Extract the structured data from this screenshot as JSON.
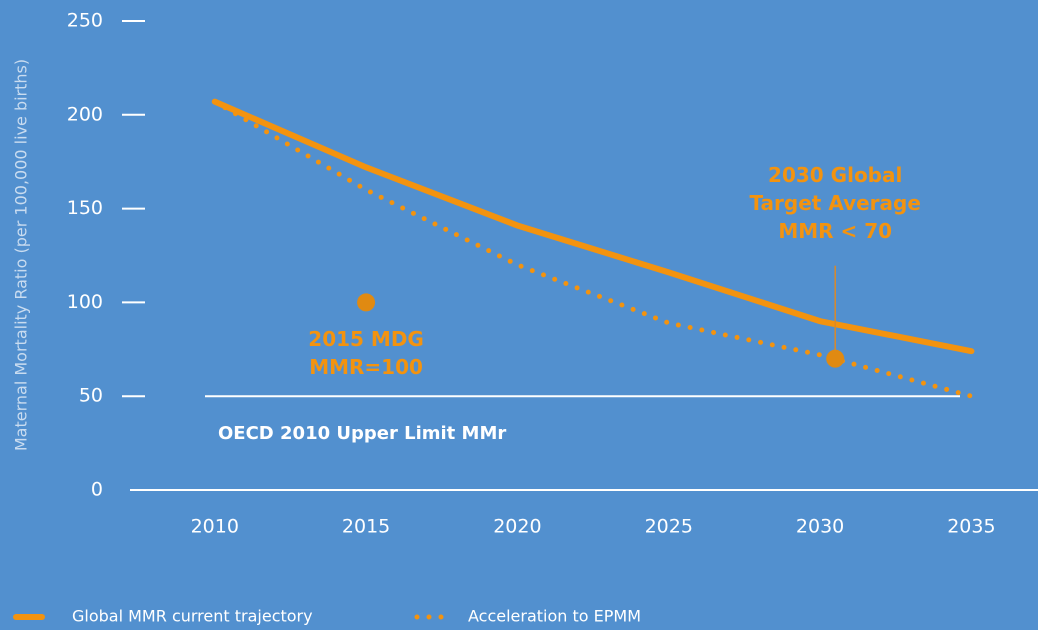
{
  "chart_data": {
    "type": "line",
    "y_label": "Maternal Mortality Ratio (per 100,000 live births)",
    "x": [
      2010,
      2015,
      2020,
      2025,
      2030,
      2035
    ],
    "series": [
      {
        "name": "Global MMR current trajectory",
        "color": "#f3930f",
        "style": "solid",
        "values": [
          207,
          172,
          141,
          116,
          90,
          74
        ]
      },
      {
        "name": "Acceleration to EPMM",
        "color": "#f3930f",
        "style": "dotted",
        "values": [
          207,
          160,
          120,
          89,
          72,
          50
        ]
      }
    ],
    "reference_line": {
      "value": 50,
      "label": "OECD 2010 Upper Limit MMr",
      "color": "#ffffff"
    },
    "points": [
      {
        "x": 2015,
        "y": 100,
        "label": [
          "2015 MDG",
          "MMR=100"
        ]
      },
      {
        "x": 2030.5,
        "y": 70,
        "label": [
          "2030 Global",
          "Target Average",
          "MMR < 70"
        ]
      }
    ],
    "xlim": [
      2007.2,
      2037.2
    ],
    "xticks": [
      2010,
      2015,
      2020,
      2025,
      2030,
      2035
    ],
    "ylim": [
      0,
      250
    ],
    "yticks": [
      0,
      50,
      100,
      150,
      200,
      250
    ]
  }
}
